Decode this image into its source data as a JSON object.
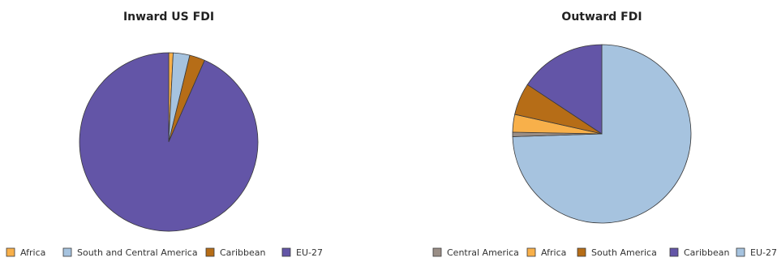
{
  "chart_data": [
    {
      "type": "pie",
      "title": "Inward US FDI",
      "legend_position": "bottom",
      "slices": [
        {
          "label": "Africa",
          "value": 0.8,
          "color": "#F8B04A"
        },
        {
          "label": "South and Central America",
          "value": 3.0,
          "color": "#A6C3DF"
        },
        {
          "label": "Caribbean",
          "value": 2.8,
          "color": "#B66D17"
        },
        {
          "label": "EU-27",
          "value": 93.4,
          "color": "#6355A7"
        }
      ]
    },
    {
      "type": "pie",
      "title": "Outward FDI",
      "legend_position": "bottom",
      "slices": [
        {
          "label": "EU-27",
          "value": 74.5,
          "color": "#A6C3DF"
        },
        {
          "label": "Central America",
          "value": 0.8,
          "color": "#9A8E86"
        },
        {
          "label": "Africa",
          "value": 3.2,
          "color": "#F8B04A"
        },
        {
          "label": "South America",
          "value": 5.8,
          "color": "#B66D17"
        },
        {
          "label": "Caribbean",
          "value": 15.7,
          "color": "#6355A7"
        }
      ],
      "legend_order": [
        "Central America",
        "Africa",
        "South America",
        "Caribbean",
        "EU-27"
      ]
    }
  ]
}
